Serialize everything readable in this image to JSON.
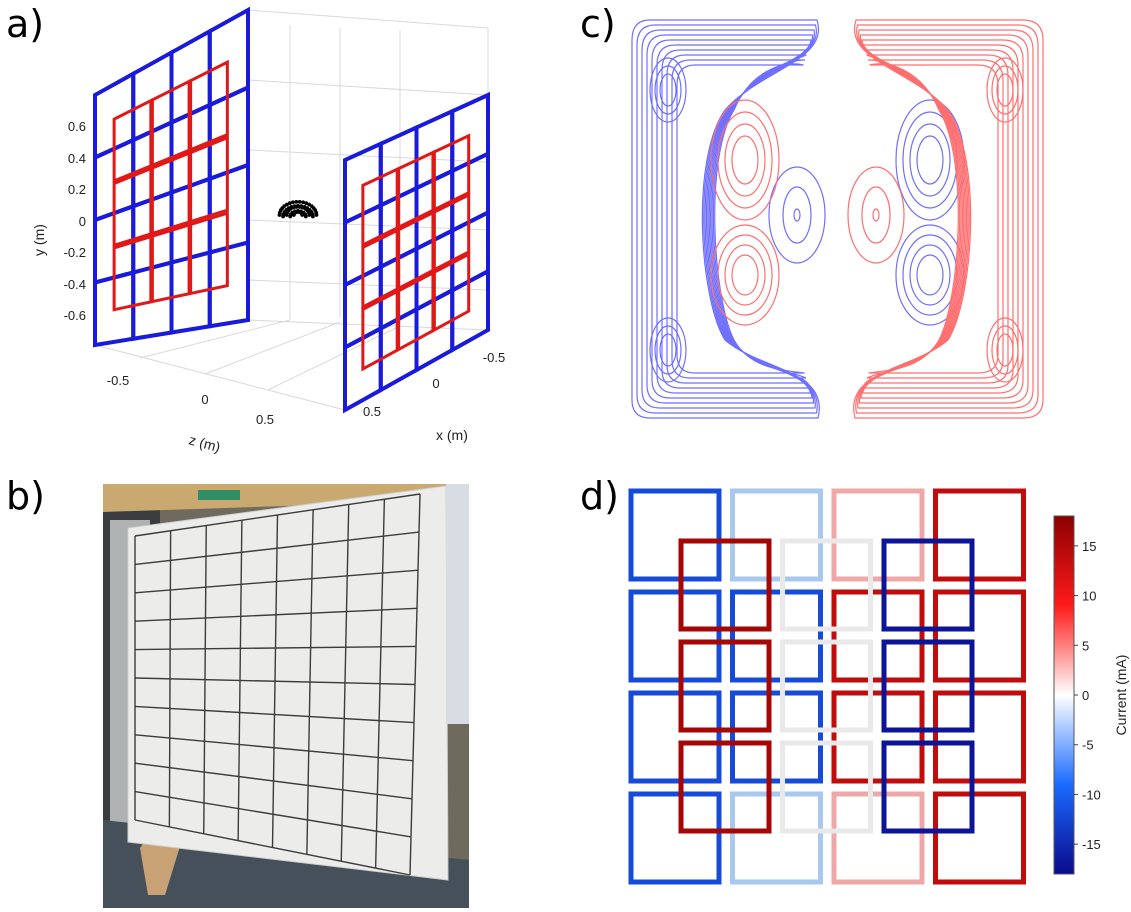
{
  "panels": {
    "a": {
      "label": "a)"
    },
    "b": {
      "label": "b)"
    },
    "c": {
      "label": "c)"
    },
    "d": {
      "label": "d)"
    }
  },
  "chart_data": [
    {
      "type": "3d-coil-layout",
      "panel": "a",
      "ylabel": "y (m)",
      "zlabel": "z (m)",
      "xlabel": "x (m)",
      "yticks": [
        "0.6",
        "0.4",
        "0.2",
        "0",
        "-0.2",
        "-0.4",
        "-0.6"
      ],
      "zticks": [
        "-0.5",
        "0",
        "0.5"
      ],
      "xticks": [
        "-0.5",
        "0",
        "0.5"
      ],
      "colors": {
        "outer_coils": "#1a1adb",
        "inner_coils": "#e01818",
        "sensors": "#000000"
      }
    },
    {
      "type": "photo",
      "panel": "b"
    },
    {
      "type": "contour",
      "panel": "c",
      "colors": {
        "negative": "#6f6fff",
        "positive": "#ff6f6f"
      }
    },
    {
      "type": "heatmap",
      "panel": "d",
      "colorbar_label": "Current (mA)",
      "colorbar_ticks": [
        "15",
        "10",
        "5",
        "0",
        "-5",
        "-10",
        "-15"
      ],
      "colorbar_range": [
        -18,
        18
      ],
      "grid_outer": [
        [
          -12,
          -5,
          5,
          14
        ],
        [
          -12,
          -12,
          14,
          14
        ],
        [
          -12,
          -12,
          14,
          14
        ],
        [
          -12,
          -5,
          5,
          14
        ]
      ],
      "grid_inner": [
        [
          16,
          0,
          -17
        ],
        [
          16,
          0,
          -17
        ],
        [
          16,
          0,
          -17
        ]
      ]
    }
  ]
}
